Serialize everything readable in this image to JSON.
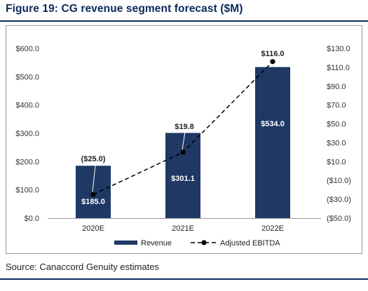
{
  "title": "Figure 19: CG revenue segment forecast ($M)",
  "source": "Source: Canaccord Genuity estimates",
  "colors": {
    "bar": "#1f3864",
    "line": "#000000",
    "title": "#0a2a5c",
    "bar_label": "#ffffff"
  },
  "chart_data": {
    "type": "bar",
    "categories": [
      "2020E",
      "2021E",
      "2022E"
    ],
    "series": [
      {
        "name": "Revenue",
        "type": "bar",
        "axis": "left",
        "values": [
          185.0,
          301.1,
          534.0
        ],
        "labels": [
          "$185.0",
          "$301.1",
          "$534.0"
        ]
      },
      {
        "name": "Adjusted EBITDA",
        "type": "line",
        "style": "dashed",
        "marker": "circle",
        "axis": "right",
        "values": [
          -25.0,
          19.8,
          116.0
        ],
        "labels": [
          "($25.0)",
          "$19.8",
          "$116.0"
        ]
      }
    ],
    "left_axis": {
      "min": 0,
      "max": 600,
      "ticks": [
        {
          "value": 0,
          "label": "$0.0"
        },
        {
          "value": 100,
          "label": "$100.0"
        },
        {
          "value": 200,
          "label": "$200.0"
        },
        {
          "value": 300,
          "label": "$300.0"
        },
        {
          "value": 400,
          "label": "$400.0"
        },
        {
          "value": 500,
          "label": "$500.0"
        },
        {
          "value": 600,
          "label": "$600.0"
        }
      ]
    },
    "right_axis": {
      "min": -50,
      "max": 130,
      "ticks": [
        {
          "value": -50,
          "label": "($50.0)"
        },
        {
          "value": -30,
          "label": "($30.0)"
        },
        {
          "value": -10,
          "label": "($10.0)"
        },
        {
          "value": 10,
          "label": "$10.0"
        },
        {
          "value": 30,
          "label": "$30.0"
        },
        {
          "value": 50,
          "label": "$50.0"
        },
        {
          "value": 70,
          "label": "$70.0"
        },
        {
          "value": 90,
          "label": "$90.0"
        },
        {
          "value": 110,
          "label": "$110.0"
        },
        {
          "value": 130,
          "label": "$130.0"
        }
      ]
    },
    "legend": {
      "position": "bottom",
      "items": [
        "Revenue",
        "Adjusted EBITDA"
      ]
    },
    "grid": false
  }
}
